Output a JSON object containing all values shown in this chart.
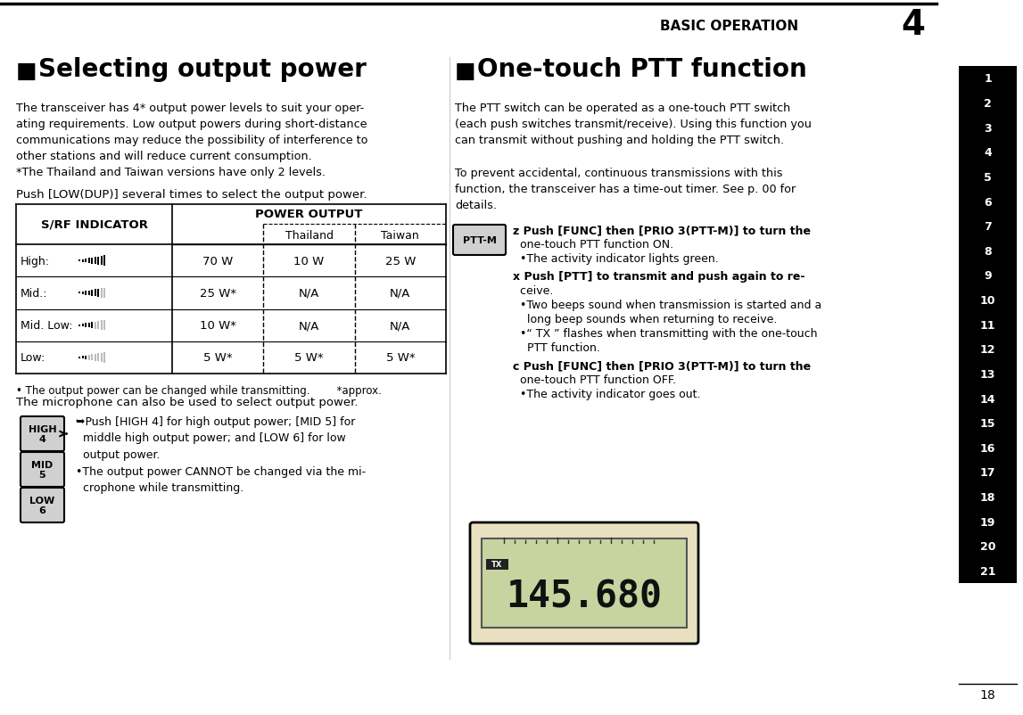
{
  "bg_color": "#ffffff",
  "page_bg": "#ffffff",
  "header_line_color": "#000000",
  "header_text": "BASIC OPERATION",
  "header_num": "4",
  "page_num": "18",
  "sidebar_bg": "#000000",
  "sidebar_text_color": "#ffffff",
  "sidebar_numbers": [
    "1",
    "2",
    "3",
    "4",
    "5",
    "6",
    "7",
    "8",
    "9",
    "10",
    "11",
    "12",
    "13",
    "14",
    "15",
    "16",
    "17",
    "18",
    "19",
    "20",
    "21"
  ],
  "left_section_title": "Selecting output power",
  "left_para1": "The transceiver has 4* output power levels to suit your oper-\nating requirements. Low output powers during short-distance\ncommunications may reduce the possibility of interference to\nother stations and will reduce current consumption.\n*The Thailand and Taiwan versions have only 2 levels.",
  "left_para2": "Push [LOW(DUP)] several times to select the output power.",
  "table_col0_header": "S/RF INDICATOR",
  "table_col_header": "POWER OUTPUT",
  "table_subcol1": "Thailand",
  "table_subcol2": "Taiwan",
  "table_rows": [
    {
      "label": "High:",
      "col0": "70 W",
      "col1": "10 W",
      "col2": "25 W"
    },
    {
      "label": "Mid.:",
      "col0": "25 W*",
      "col1": "N/A",
      "col2": "N/A"
    },
    {
      "label": "Mid. Low:",
      "col0": "10 W*",
      "col1": "N/A",
      "col2": "N/A"
    },
    {
      "label": "Low:",
      "col0": "5 W*",
      "col1": "5 W*",
      "col2": "5 W*"
    }
  ],
  "table_note": "• The output power can be changed while transmitting.        *approx.",
  "left_para3": "The microphone can also be used to select output power.",
  "mic_text": "➥Push [HIGH 4] for high output power; [MID 5] for\nmiddle high output power; and [LOW 6] for low\noutput power.\n•The output power CANNOT be changed via the mi-\n  crophone while transmitting.",
  "right_section_title": "One-touch PTT function",
  "right_para1": "The PTT switch can be operated as a one-touch PTT switch\n(each push switches transmit/receive). Using this function you\ncan transmit without pushing and holding the PTT switch.",
  "right_para2": "To prevent accidental, continuous transmissions with this\nfunction, the transceiver has a time-out timer. See p. 00 for\ndetails.",
  "step1": "z Push [FUNC] then [PRIO 3(PTT-M)] to turn the\n  one-touch PTT function ON.\n  •The activity indicator lights green.",
  "step2": "x Push [PTT] to transmit and push again to re-\n  ceive.\n  •Two beeps sound when transmission is started and a\n    long beep sounds when returning to receive.\n  •“     ” flashes when transmitting with the one-touch\n    PTT function.",
  "step3": "c Push [FUNC] then [PRIO 3(PTT-M)] to turn the\n  one-touch PTT function OFF.\n  •The activity indicator goes out.",
  "display_text": "145.680",
  "ptt_label": "PTT-M",
  "high_label": "HIGH\n4",
  "mid_label": "MID\n5",
  "low_label": "LOW\n6"
}
